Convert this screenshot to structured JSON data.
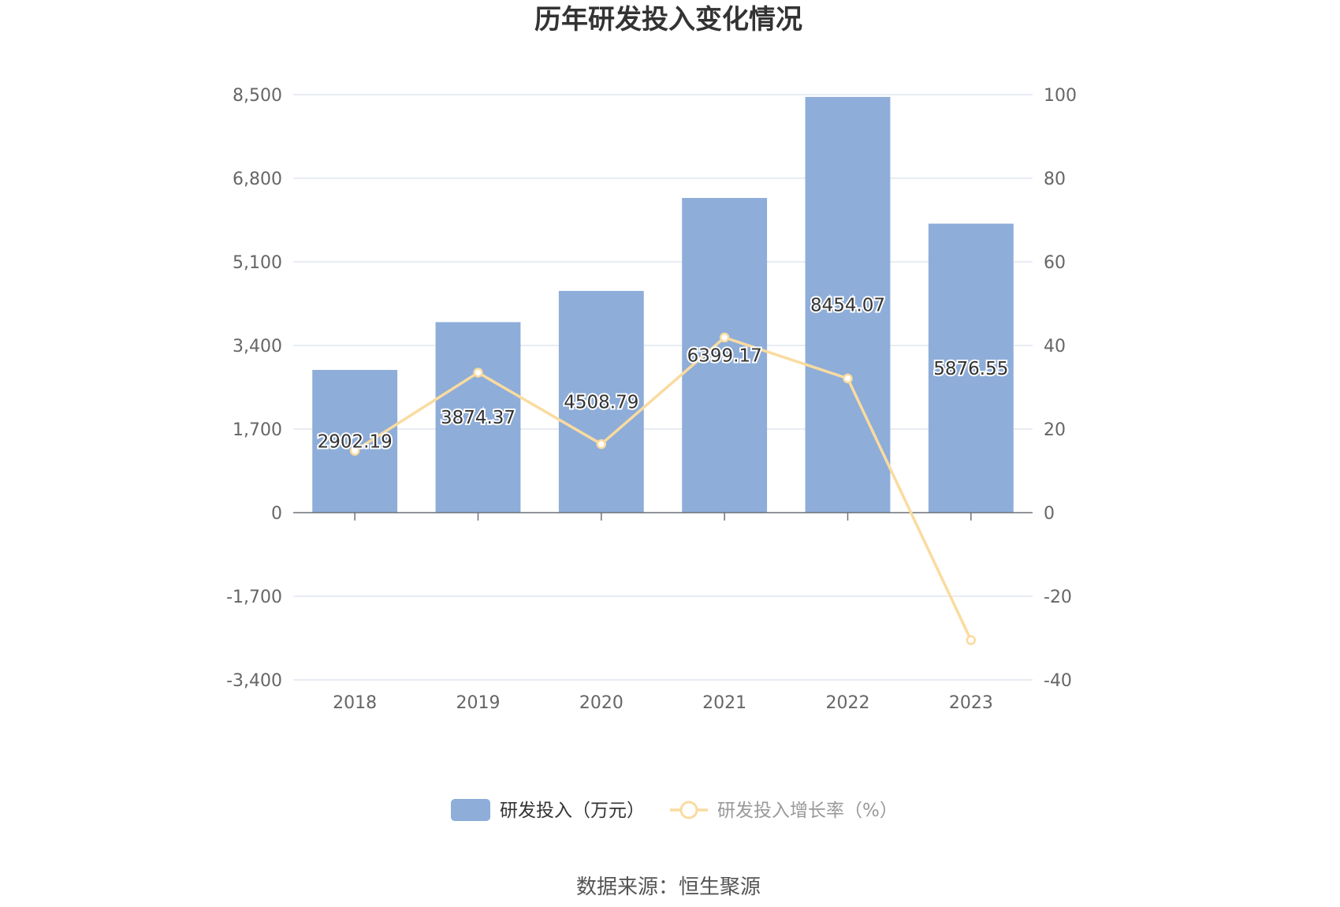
{
  "chart_data": {
    "type": "bar",
    "title": "历年研发投入变化情况",
    "categories": [
      "2018",
      "2019",
      "2020",
      "2021",
      "2022",
      "2023"
    ],
    "series": [
      {
        "name": "研发投入（万元）",
        "type": "bar",
        "axis": "left",
        "color": "#8eadd9",
        "values": [
          2902.19,
          3874.37,
          4508.79,
          6399.17,
          8454.07,
          5876.55
        ],
        "labels": [
          "2902.19",
          "3874.37",
          "4508.79",
          "6399.17",
          "8454.07",
          "5876.55"
        ]
      },
      {
        "name": "研发投入增长率（%）",
        "type": "line",
        "axis": "right",
        "color": "#fadb9f",
        "values": [
          14.8,
          33.5,
          16.4,
          41.9,
          32.1,
          -30.5
        ]
      }
    ],
    "y_left": {
      "ylim": [
        -3400,
        8500
      ],
      "ticks": [
        -3400,
        -1700,
        0,
        1700,
        3400,
        5100,
        6800,
        8500
      ],
      "tick_labels": [
        "-3,400",
        "-1,700",
        "0",
        "1,700",
        "3,400",
        "5,100",
        "6,800",
        "8,500"
      ]
    },
    "y_right": {
      "ylim": [
        -40,
        100
      ],
      "ticks": [
        -40,
        -20,
        0,
        20,
        40,
        60,
        80,
        100
      ],
      "tick_labels": [
        "-40",
        "-20",
        "0",
        "20",
        "40",
        "60",
        "80",
        "100"
      ]
    },
    "grid": true,
    "legend_position": "bottom-center",
    "source": "数据来源：恒生聚源"
  }
}
